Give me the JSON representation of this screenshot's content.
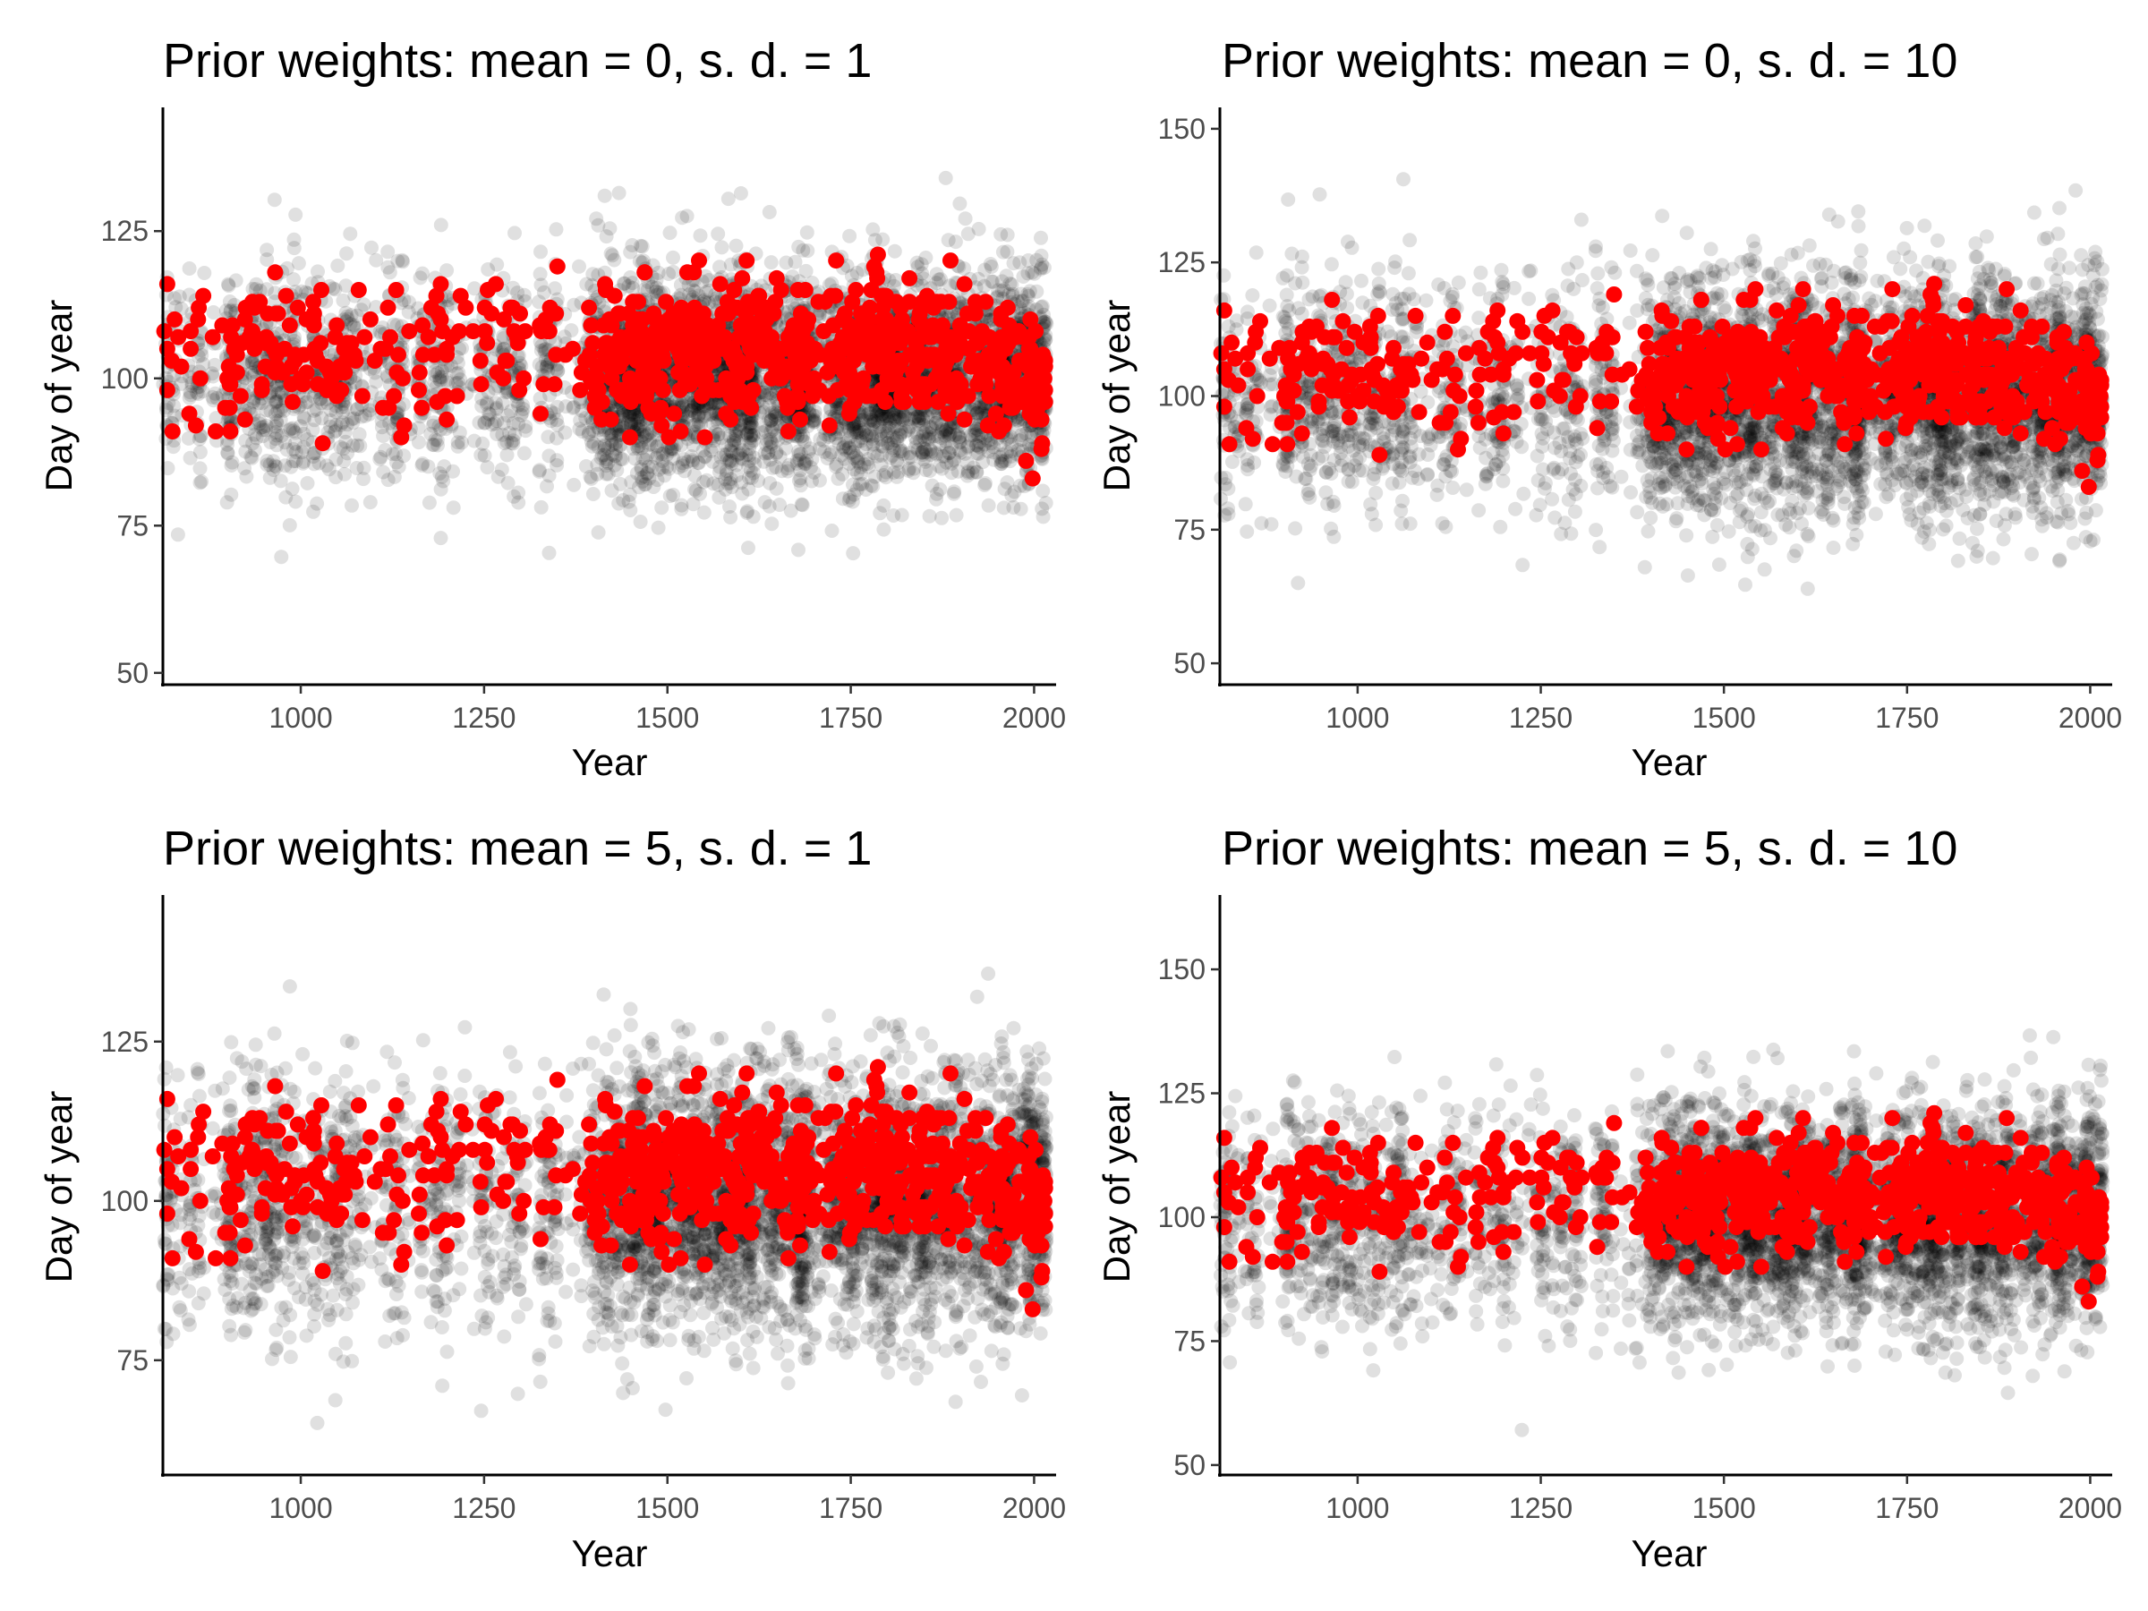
{
  "chart_data": [
    {
      "type": "scatter",
      "title": "Prior weights: mean = 0, s. d. = 1",
      "xlabel": "Year",
      "ylabel": "Day of year",
      "xlim": [
        812,
        2030
      ],
      "ylim": [
        48,
        146
      ],
      "xticks": [
        1000,
        1250,
        1500,
        1750,
        2000
      ],
      "xtick_labels": [
        "1000",
        "1250",
        "1500",
        "1750",
        "2000"
      ],
      "yticks": [
        50,
        75,
        100,
        125
      ],
      "ytick_labels": [
        "50",
        "75",
        "100",
        "125"
      ],
      "sim_sd": 9,
      "grid": false,
      "legend": "none",
      "series": [
        {
          "kind": "simulated",
          "color": "#000000",
          "opacity": 0.12
        },
        {
          "kind": "observed",
          "color": "#ff0000"
        }
      ]
    },
    {
      "type": "scatter",
      "title": "Prior weights: mean = 0, s. d. = 10",
      "xlabel": "Year",
      "ylabel": "Day of year",
      "xlim": [
        812,
        2030
      ],
      "ylim": [
        46,
        154
      ],
      "xticks": [
        1000,
        1250,
        1500,
        1750,
        2000
      ],
      "xtick_labels": [
        "1000",
        "1250",
        "1500",
        "1750",
        "2000"
      ],
      "yticks": [
        50,
        75,
        100,
        125,
        150
      ],
      "ytick_labels": [
        "50",
        "75",
        "100",
        "125",
        "150"
      ],
      "sim_sd": 11,
      "grid": false,
      "legend": "none",
      "series": [
        {
          "kind": "simulated",
          "color": "#000000",
          "opacity": 0.12
        },
        {
          "kind": "observed",
          "color": "#ff0000"
        }
      ]
    },
    {
      "type": "scatter",
      "title": "Prior weights: mean = 5, s. d. = 1",
      "xlabel": "Year",
      "ylabel": "Day of year",
      "xlim": [
        812,
        2030
      ],
      "ylim": [
        57,
        148
      ],
      "xticks": [
        1000,
        1250,
        1500,
        1750,
        2000
      ],
      "xtick_labels": [
        "1000",
        "1250",
        "1500",
        "1750",
        "2000"
      ],
      "yticks": [
        75,
        100,
        125
      ],
      "ytick_labels": [
        "75",
        "100",
        "125"
      ],
      "sim_sd": 10,
      "grid": false,
      "legend": "none",
      "series": [
        {
          "kind": "simulated",
          "color": "#000000",
          "opacity": 0.12
        },
        {
          "kind": "observed",
          "color": "#ff0000"
        }
      ]
    },
    {
      "type": "scatter",
      "title": "Prior weights: mean = 5, s. d. = 10",
      "xlabel": "Year",
      "ylabel": "Day of year",
      "xlim": [
        812,
        2030
      ],
      "ylim": [
        48,
        165
      ],
      "xticks": [
        1000,
        1250,
        1500,
        1750,
        2000
      ],
      "xtick_labels": [
        "1000",
        "1250",
        "1500",
        "1750",
        "2000"
      ],
      "yticks": [
        50,
        75,
        100,
        125,
        150
      ],
      "ytick_labels": [
        "50",
        "75",
        "100",
        "125",
        "150"
      ],
      "sim_sd": 11,
      "grid": false,
      "legend": "none",
      "series": [
        {
          "kind": "simulated",
          "color": "#000000",
          "opacity": 0.12
        },
        {
          "kind": "observed",
          "color": "#ff0000"
        }
      ]
    }
  ]
}
